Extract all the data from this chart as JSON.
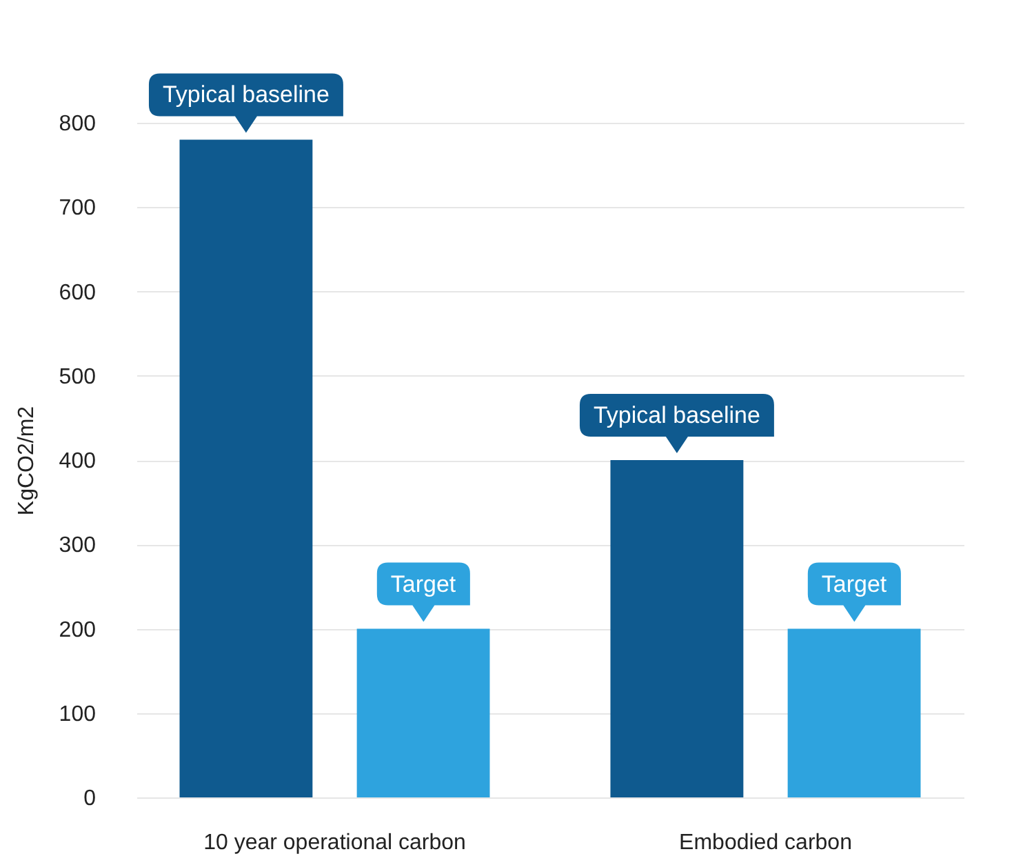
{
  "chart_data": {
    "type": "bar",
    "ylabel": "KgCO2/m2",
    "categories": [
      "10 year operational carbon",
      "Embodied carbon"
    ],
    "series": [
      {
        "name": "Typical baseline",
        "color": "#0f5a8f",
        "values": [
          780,
          400
        ]
      },
      {
        "name": "Target",
        "color": "#2ea3de",
        "values": [
          200,
          200
        ]
      }
    ],
    "ylim": [
      0,
      800
    ],
    "yticks": [
      0,
      100,
      200,
      300,
      400,
      500,
      600,
      700,
      800
    ],
    "grid": "y"
  }
}
